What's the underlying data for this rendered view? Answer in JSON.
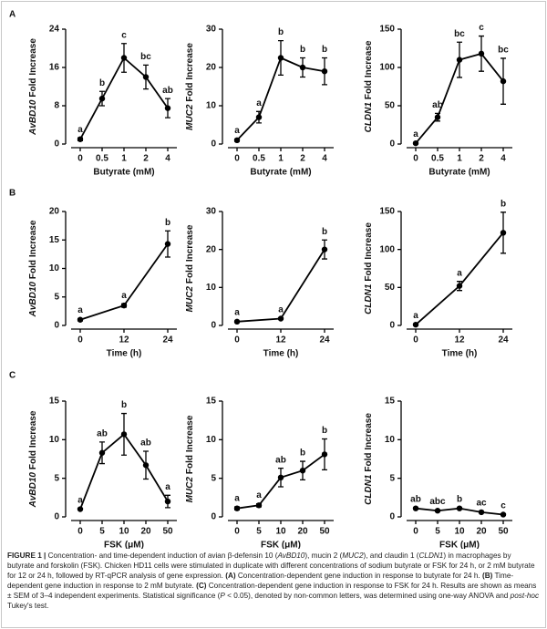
{
  "panels": [
    "A",
    "B",
    "C"
  ],
  "chart_data": [
    {
      "type": "line",
      "ylabel": [
        "AvBD10",
        "Fold Increase"
      ],
      "xlabel": "Butyrate (mM)",
      "categories": [
        "0",
        "0.5",
        "1",
        "2",
        "4"
      ],
      "values": [
        1,
        9.5,
        18,
        14,
        7.5
      ],
      "errors": [
        0.3,
        1.5,
        3,
        2.5,
        2
      ],
      "annotations": [
        "a",
        "b",
        "c",
        "bc",
        "ab"
      ],
      "ylim": [
        0,
        24
      ],
      "yticks": [
        0,
        8,
        16,
        24
      ],
      "color": "#000000"
    },
    {
      "type": "line",
      "ylabel": [
        "MUC2",
        "Fold Increase"
      ],
      "xlabel": "Butyrate (mM)",
      "categories": [
        "0",
        "0.5",
        "1",
        "2",
        "4"
      ],
      "values": [
        1,
        7,
        22.5,
        20,
        19
      ],
      "errors": [
        0.3,
        1.5,
        4.5,
        2.5,
        3.5
      ],
      "annotations": [
        "a",
        "a",
        "b",
        "b",
        "b"
      ],
      "ylim": [
        0,
        30
      ],
      "yticks": [
        0,
        10,
        20,
        30
      ],
      "color": "#000000"
    },
    {
      "type": "line",
      "ylabel": [
        "CLDN1",
        "Fold Increase"
      ],
      "xlabel": "Butyrate (mM)",
      "categories": [
        "0",
        "0.5",
        "1",
        "2",
        "4"
      ],
      "values": [
        1,
        35,
        110,
        118,
        82
      ],
      "errors": [
        1,
        5,
        23,
        23,
        30
      ],
      "annotations": [
        "a",
        "ab",
        "bc",
        "c",
        "bc"
      ],
      "ylim": [
        0,
        150
      ],
      "yticks": [
        0,
        50,
        100,
        150
      ],
      "color": "#000000"
    },
    {
      "type": "line",
      "ylabel": [
        "AvBD10",
        "Fold Increase"
      ],
      "xlabel": "Time (h)",
      "categories": [
        "0",
        "12",
        "24"
      ],
      "values": [
        1,
        3.5,
        14.3
      ],
      "errors": [
        0.2,
        0.3,
        2.3
      ],
      "annotations": [
        "a",
        "a",
        "b"
      ],
      "ylim": [
        0,
        20
      ],
      "yticks": [
        0,
        5,
        10,
        15,
        20
      ],
      "color": "#000000"
    },
    {
      "type": "line",
      "ylabel": [
        "MUC2",
        "Fold Increase"
      ],
      "xlabel": "Time (h)",
      "categories": [
        "0",
        "12",
        "24"
      ],
      "values": [
        1,
        1.8,
        20
      ],
      "errors": [
        0.2,
        0.2,
        2.5
      ],
      "annotations": [
        "a",
        "a",
        "b"
      ],
      "ylim": [
        0,
        30
      ],
      "yticks": [
        0,
        10,
        20,
        30
      ],
      "color": "#000000"
    },
    {
      "type": "line",
      "ylabel": [
        "CLDN1",
        "Fold Increase"
      ],
      "xlabel": "Time (h)",
      "categories": [
        "0",
        "12",
        "24"
      ],
      "values": [
        1,
        52,
        122
      ],
      "errors": [
        1,
        6,
        27
      ],
      "annotations": [
        "a",
        "a",
        "b"
      ],
      "ylim": [
        0,
        150
      ],
      "yticks": [
        0,
        50,
        100,
        150
      ],
      "color": "#000000"
    },
    {
      "type": "line",
      "ylabel": [
        "AvBD10",
        "Fold Increase"
      ],
      "xlabel": "FSK (μM)",
      "categories": [
        "0",
        "5",
        "10",
        "20",
        "50"
      ],
      "values": [
        1,
        8.3,
        10.7,
        6.7,
        2
      ],
      "errors": [
        0.1,
        1.4,
        2.7,
        1.8,
        0.8
      ],
      "annotations": [
        "a",
        "ab",
        "b",
        "ab",
        "a"
      ],
      "ylim": [
        0,
        15
      ],
      "yticks": [
        0,
        5,
        10,
        15
      ],
      "color": "#000000"
    },
    {
      "type": "line",
      "ylabel": [
        "MUC2",
        "Fold Increase"
      ],
      "xlabel": "FSK (μM)",
      "categories": [
        "0",
        "5",
        "10",
        "20",
        "50"
      ],
      "values": [
        1.1,
        1.5,
        5.1,
        6,
        8.1
      ],
      "errors": [
        0.2,
        0.2,
        1.2,
        1.2,
        2
      ],
      "annotations": [
        "a",
        "a",
        "ab",
        "b",
        "b"
      ],
      "ylim": [
        0,
        15
      ],
      "yticks": [
        0,
        5,
        10,
        15
      ],
      "color": "#000000"
    },
    {
      "type": "line",
      "ylabel": [
        "CLDN1",
        "Fold Increase"
      ],
      "xlabel": "FSK (μM)",
      "categories": [
        "0",
        "5",
        "10",
        "20",
        "50"
      ],
      "values": [
        1.1,
        0.8,
        1.1,
        0.6,
        0.3
      ],
      "errors": [
        0.1,
        0.1,
        0.1,
        0.1,
        0.1
      ],
      "annotations": [
        "ab",
        "abc",
        "b",
        "ac",
        "c"
      ],
      "ylim": [
        0,
        15
      ],
      "yticks": [
        0,
        5,
        10,
        15
      ],
      "color": "#000000"
    }
  ],
  "caption": [
    {
      "text": "FIGURE 1 | ",
      "style": "b"
    },
    {
      "text": "Concentration- and time-dependent induction of avian β-defensin 10 (",
      "style": "n"
    },
    {
      "text": "AvBD10",
      "style": "i"
    },
    {
      "text": "), mucin 2 (",
      "style": "n"
    },
    {
      "text": "MUC2",
      "style": "i"
    },
    {
      "text": "), and claudin 1 (",
      "style": "n"
    },
    {
      "text": "CLDN1",
      "style": "i"
    },
    {
      "text": ") in macrophages by butyrate and forskolin (FSK). Chicken HD11 cells were stimulated in duplicate with different concentrations of sodium butyrate or FSK for 24 h, or 2 mM butyrate for 12 or 24 h, followed by RT-qPCR analysis of gene expression. ",
      "style": "n"
    },
    {
      "text": "(A)",
      "style": "b"
    },
    {
      "text": " Concentration-dependent gene induction in response to butyrate for 24 h. ",
      "style": "n"
    },
    {
      "text": "(B)",
      "style": "b"
    },
    {
      "text": " Time-dependent gene induction in response to 2 mM butyrate. ",
      "style": "n"
    },
    {
      "text": "(C)",
      "style": "b"
    },
    {
      "text": " Concentration-dependent gene induction in response to FSK for 24 h. Results are shown as means ± SEM of 3–4 independent experiments. Statistical significance (",
      "style": "n"
    },
    {
      "text": "P",
      "style": "i"
    },
    {
      "text": " < 0.05), denoted by non-common letters, was determined using one-way ANOVA and ",
      "style": "n"
    },
    {
      "text": "post-hoc",
      "style": "i"
    },
    {
      "text": " Tukey's test.",
      "style": "n"
    }
  ]
}
